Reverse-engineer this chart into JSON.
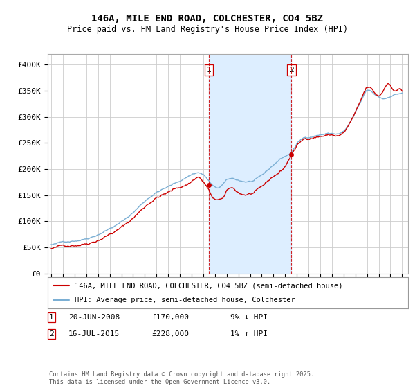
{
  "title_line1": "146A, MILE END ROAD, COLCHESTER, CO4 5BZ",
  "title_line2": "Price paid vs. HM Land Registry's House Price Index (HPI)",
  "ylim": [
    0,
    420000
  ],
  "yticks": [
    0,
    50000,
    100000,
    150000,
    200000,
    250000,
    300000,
    350000,
    400000
  ],
  "ytick_labels": [
    "£0",
    "£50K",
    "£100K",
    "£150K",
    "£200K",
    "£250K",
    "£300K",
    "£350K",
    "£400K"
  ],
  "hpi_color": "#7bafd4",
  "price_color": "#cc0000",
  "vline_color": "#cc0000",
  "shade_color": "#ddeeff",
  "sale1_year": 2008.47,
  "sale1_price": 170000,
  "sale2_year": 2015.54,
  "sale2_price": 228000,
  "legend_line1": "146A, MILE END ROAD, COLCHESTER, CO4 5BZ (semi-detached house)",
  "legend_line2": "HPI: Average price, semi-detached house, Colchester",
  "footnote": "Contains HM Land Registry data © Crown copyright and database right 2025.\nThis data is licensed under the Open Government Licence v3.0.",
  "background_color": "#ffffff",
  "grid_color": "#cccccc",
  "xlim_start": 1994.7,
  "xlim_end": 2025.5
}
